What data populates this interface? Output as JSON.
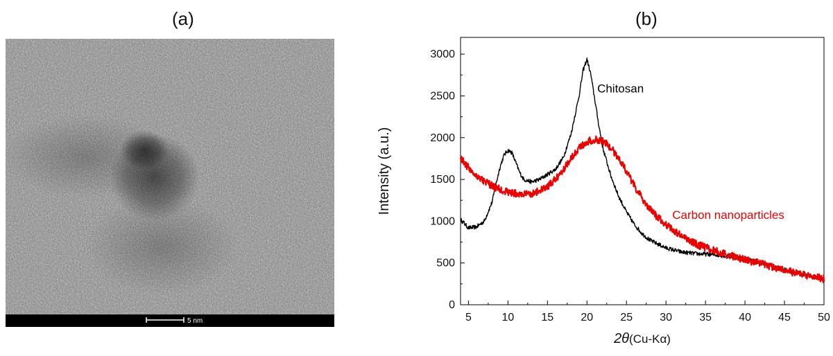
{
  "panels": {
    "a": {
      "label": "(a)"
    },
    "b": {
      "label": "(b)"
    }
  },
  "tem": {
    "scale_bar_label": "5 nm"
  },
  "chart_data": {
    "type": "line",
    "xlabel_italic": "2θ",
    "xlabel_rest": "(Cu-Kα)",
    "ylabel": "Intensity (a.u.)",
    "xlim": [
      4,
      50
    ],
    "ylim": [
      0,
      3200
    ],
    "xticks": [
      5,
      10,
      15,
      20,
      25,
      30,
      35,
      40,
      45,
      50
    ],
    "yticks": [
      0,
      500,
      1000,
      1500,
      2000,
      2500,
      3000
    ],
    "grid": false,
    "series": [
      {
        "name": "Chitosan",
        "color": "#000000",
        "x": [
          4,
          5,
          6,
          7,
          8,
          8.5,
          9,
          9.5,
          10,
          10.5,
          11,
          11.5,
          12,
          13,
          14,
          15,
          16,
          17,
          18,
          19,
          19.5,
          20,
          20.5,
          21,
          21.5,
          22,
          23,
          24,
          25,
          26,
          27,
          28,
          30,
          32,
          34,
          36,
          38,
          40,
          42,
          44,
          46,
          48,
          50
        ],
        "y": [
          1020,
          920,
          930,
          1000,
          1230,
          1450,
          1650,
          1790,
          1850,
          1820,
          1700,
          1580,
          1500,
          1470,
          1500,
          1560,
          1620,
          1760,
          2050,
          2500,
          2800,
          2940,
          2750,
          2450,
          2150,
          1880,
          1550,
          1300,
          1110,
          960,
          850,
          770,
          680,
          630,
          610,
          600,
          580,
          550,
          500,
          450,
          390,
          350,
          310
        ]
      },
      {
        "name": "Carbon nanoparticles",
        "color": "#ee0000",
        "x": [
          4,
          5,
          6,
          7,
          8,
          9,
          10,
          11,
          12,
          13,
          14,
          15,
          16,
          17,
          18,
          19,
          20,
          21,
          22,
          23,
          24,
          25,
          26,
          27,
          28,
          29,
          30,
          32,
          34,
          36,
          38,
          40,
          42,
          44,
          46,
          48,
          50
        ],
        "y": [
          1760,
          1640,
          1550,
          1480,
          1420,
          1380,
          1350,
          1330,
          1320,
          1330,
          1360,
          1410,
          1500,
          1620,
          1760,
          1880,
          1950,
          1980,
          1960,
          1880,
          1760,
          1600,
          1420,
          1270,
          1140,
          1040,
          960,
          820,
          720,
          650,
          590,
          540,
          490,
          440,
          390,
          350,
          310
        ]
      }
    ],
    "annotations": [
      {
        "text": "Chitosan",
        "x": 21.3,
        "y": 2540,
        "color": "#000000"
      },
      {
        "text": "Carbon nanoparticles",
        "x": 30.8,
        "y": 1030,
        "color": "#ee0000"
      }
    ]
  }
}
